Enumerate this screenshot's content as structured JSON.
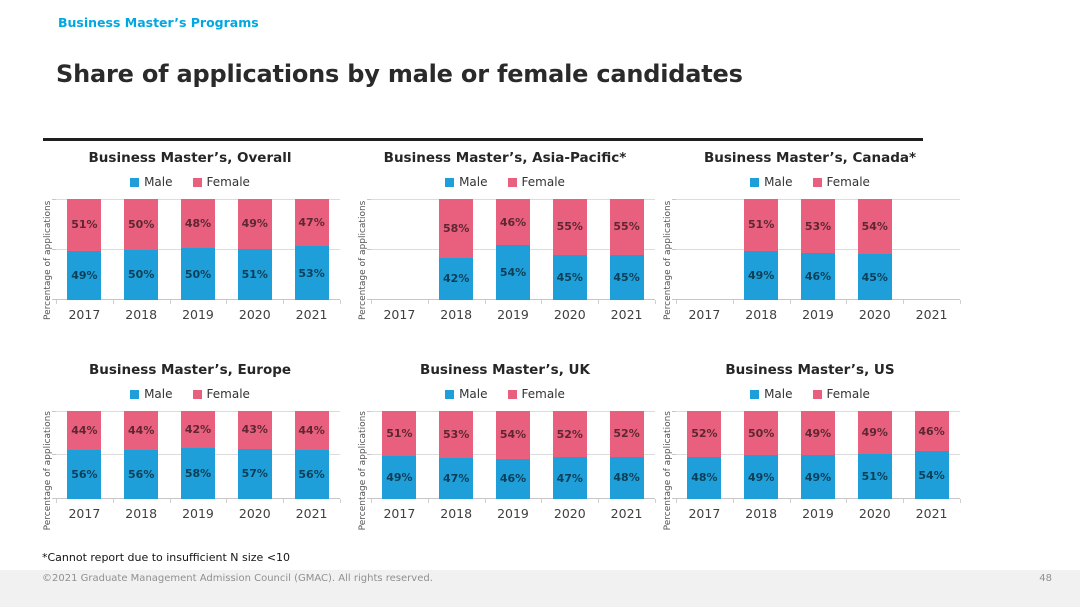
{
  "header": {
    "eyebrow": "Business Master’s Programs",
    "title": "Share of applications by male or female candidates"
  },
  "colors": {
    "eyebrow": "#00a7e1",
    "male": "#1f9fd9",
    "female": "#e8607d",
    "bar_label": "rgba(0,0,0,0.6)"
  },
  "footer": {
    "footnote": "*Cannot report due to insufficient N size <10",
    "copyright": "©2021 Graduate Management Admission Council (GMAC). All rights reserved.",
    "page_number": "48"
  },
  "chart_data": [
    {
      "type": "bar",
      "stacked": true,
      "title": "Business Master’s, Overall",
      "categories": [
        "2017",
        "2018",
        "2019",
        "2020",
        "2021"
      ],
      "series": [
        {
          "name": "Male",
          "color": "#1f9fd9",
          "values": [
            49,
            50,
            50,
            51,
            53
          ]
        },
        {
          "name": "Female",
          "color": "#e8607d",
          "values": [
            51,
            50,
            48,
            49,
            47
          ]
        }
      ],
      "ylabel": "Percentage of applications",
      "ylim": [
        0,
        100
      ],
      "value_suffix": "%",
      "legend_position": "top",
      "grid": "horizontal"
    },
    {
      "type": "bar",
      "stacked": true,
      "title": "Business Master’s, Asia-Pacific*",
      "categories": [
        "2017",
        "2018",
        "2019",
        "2020",
        "2021"
      ],
      "series": [
        {
          "name": "Male",
          "color": "#1f9fd9",
          "values": [
            null,
            42,
            54,
            45,
            45
          ]
        },
        {
          "name": "Female",
          "color": "#e8607d",
          "values": [
            null,
            58,
            46,
            55,
            55
          ]
        }
      ],
      "ylabel": "Percentage of applications",
      "ylim": [
        0,
        100
      ],
      "value_suffix": "%",
      "legend_position": "top",
      "grid": "horizontal"
    },
    {
      "type": "bar",
      "stacked": true,
      "title": "Business Master’s, Canada*",
      "categories": [
        "2017",
        "2018",
        "2019",
        "2020",
        "2021"
      ],
      "series": [
        {
          "name": "Male",
          "color": "#1f9fd9",
          "values": [
            null,
            49,
            46,
            45,
            null
          ]
        },
        {
          "name": "Female",
          "color": "#e8607d",
          "values": [
            null,
            51,
            53,
            54,
            null
          ]
        }
      ],
      "ylabel": "Percentage of applications",
      "ylim": [
        0,
        100
      ],
      "value_suffix": "%",
      "legend_position": "top",
      "grid": "horizontal"
    },
    {
      "type": "bar",
      "stacked": true,
      "title": "Business Master’s, Europe",
      "categories": [
        "2017",
        "2018",
        "2019",
        "2020",
        "2021"
      ],
      "series": [
        {
          "name": "Male",
          "color": "#1f9fd9",
          "values": [
            56,
            56,
            58,
            57,
            56
          ]
        },
        {
          "name": "Female",
          "color": "#e8607d",
          "values": [
            44,
            44,
            42,
            43,
            44
          ]
        }
      ],
      "ylabel": "Percentage of applications",
      "ylim": [
        0,
        100
      ],
      "value_suffix": "%",
      "legend_position": "top",
      "grid": "horizontal"
    },
    {
      "type": "bar",
      "stacked": true,
      "title": "Business Master’s, UK",
      "categories": [
        "2017",
        "2018",
        "2019",
        "2020",
        "2021"
      ],
      "series": [
        {
          "name": "Male",
          "color": "#1f9fd9",
          "values": [
            49,
            47,
            46,
            47,
            48
          ]
        },
        {
          "name": "Female",
          "color": "#e8607d",
          "values": [
            51,
            53,
            54,
            52,
            52
          ]
        }
      ],
      "ylabel": "Percentage of applications",
      "ylim": [
        0,
        100
      ],
      "value_suffix": "%",
      "legend_position": "top",
      "grid": "horizontal"
    },
    {
      "type": "bar",
      "stacked": true,
      "title": "Business Master’s, US",
      "categories": [
        "2017",
        "2018",
        "2019",
        "2020",
        "2021"
      ],
      "series": [
        {
          "name": "Male",
          "color": "#1f9fd9",
          "values": [
            48,
            49,
            49,
            51,
            54
          ]
        },
        {
          "name": "Female",
          "color": "#e8607d",
          "values": [
            52,
            50,
            49,
            49,
            46
          ]
        }
      ],
      "ylabel": "Percentage of applications",
      "ylim": [
        0,
        100
      ],
      "value_suffix": "%",
      "legend_position": "top",
      "grid": "horizontal"
    }
  ]
}
